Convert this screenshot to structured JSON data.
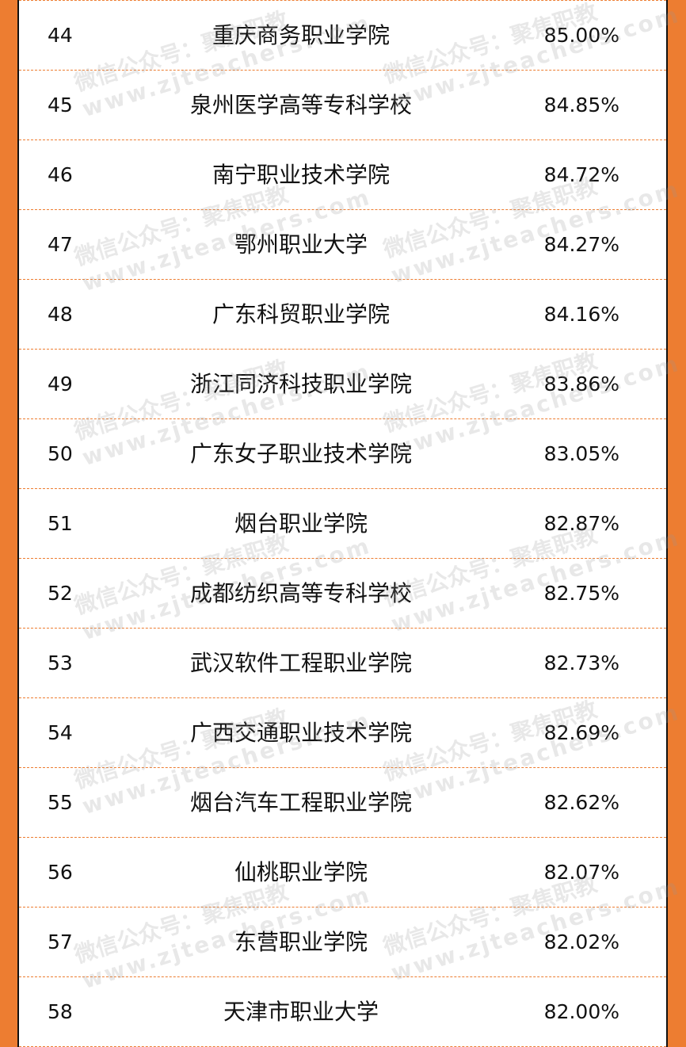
{
  "accent_color": "#ED7D31",
  "watermark": {
    "line1": "微信公众号：聚焦职教",
    "line2": "www.zjteachers.com"
  },
  "rows": [
    {
      "rank": "44",
      "name": "重庆商务职业学院",
      "rate": "85.00%"
    },
    {
      "rank": "45",
      "name": "泉州医学高等专科学校",
      "rate": "84.85%"
    },
    {
      "rank": "46",
      "name": "南宁职业技术学院",
      "rate": "84.72%"
    },
    {
      "rank": "47",
      "name": "鄂州职业大学",
      "rate": "84.27%"
    },
    {
      "rank": "48",
      "name": "广东科贸职业学院",
      "rate": "84.16%"
    },
    {
      "rank": "49",
      "name": "浙江同济科技职业学院",
      "rate": "83.86%"
    },
    {
      "rank": "50",
      "name": "广东女子职业技术学院",
      "rate": "83.05%"
    },
    {
      "rank": "51",
      "name": "烟台职业学院",
      "rate": "82.87%"
    },
    {
      "rank": "52",
      "name": "成都纺织高等专科学校",
      "rate": "82.75%"
    },
    {
      "rank": "53",
      "name": "武汉软件工程职业学院",
      "rate": "82.73%"
    },
    {
      "rank": "54",
      "name": "广西交通职业技术学院",
      "rate": "82.69%"
    },
    {
      "rank": "55",
      "name": "烟台汽车工程职业学院",
      "rate": "82.62%"
    },
    {
      "rank": "56",
      "name": "仙桃职业学院",
      "rate": "82.07%"
    },
    {
      "rank": "57",
      "name": "东营职业学院",
      "rate": "82.02%"
    },
    {
      "rank": "58",
      "name": "天津市职业大学",
      "rate": "82.00%"
    }
  ]
}
